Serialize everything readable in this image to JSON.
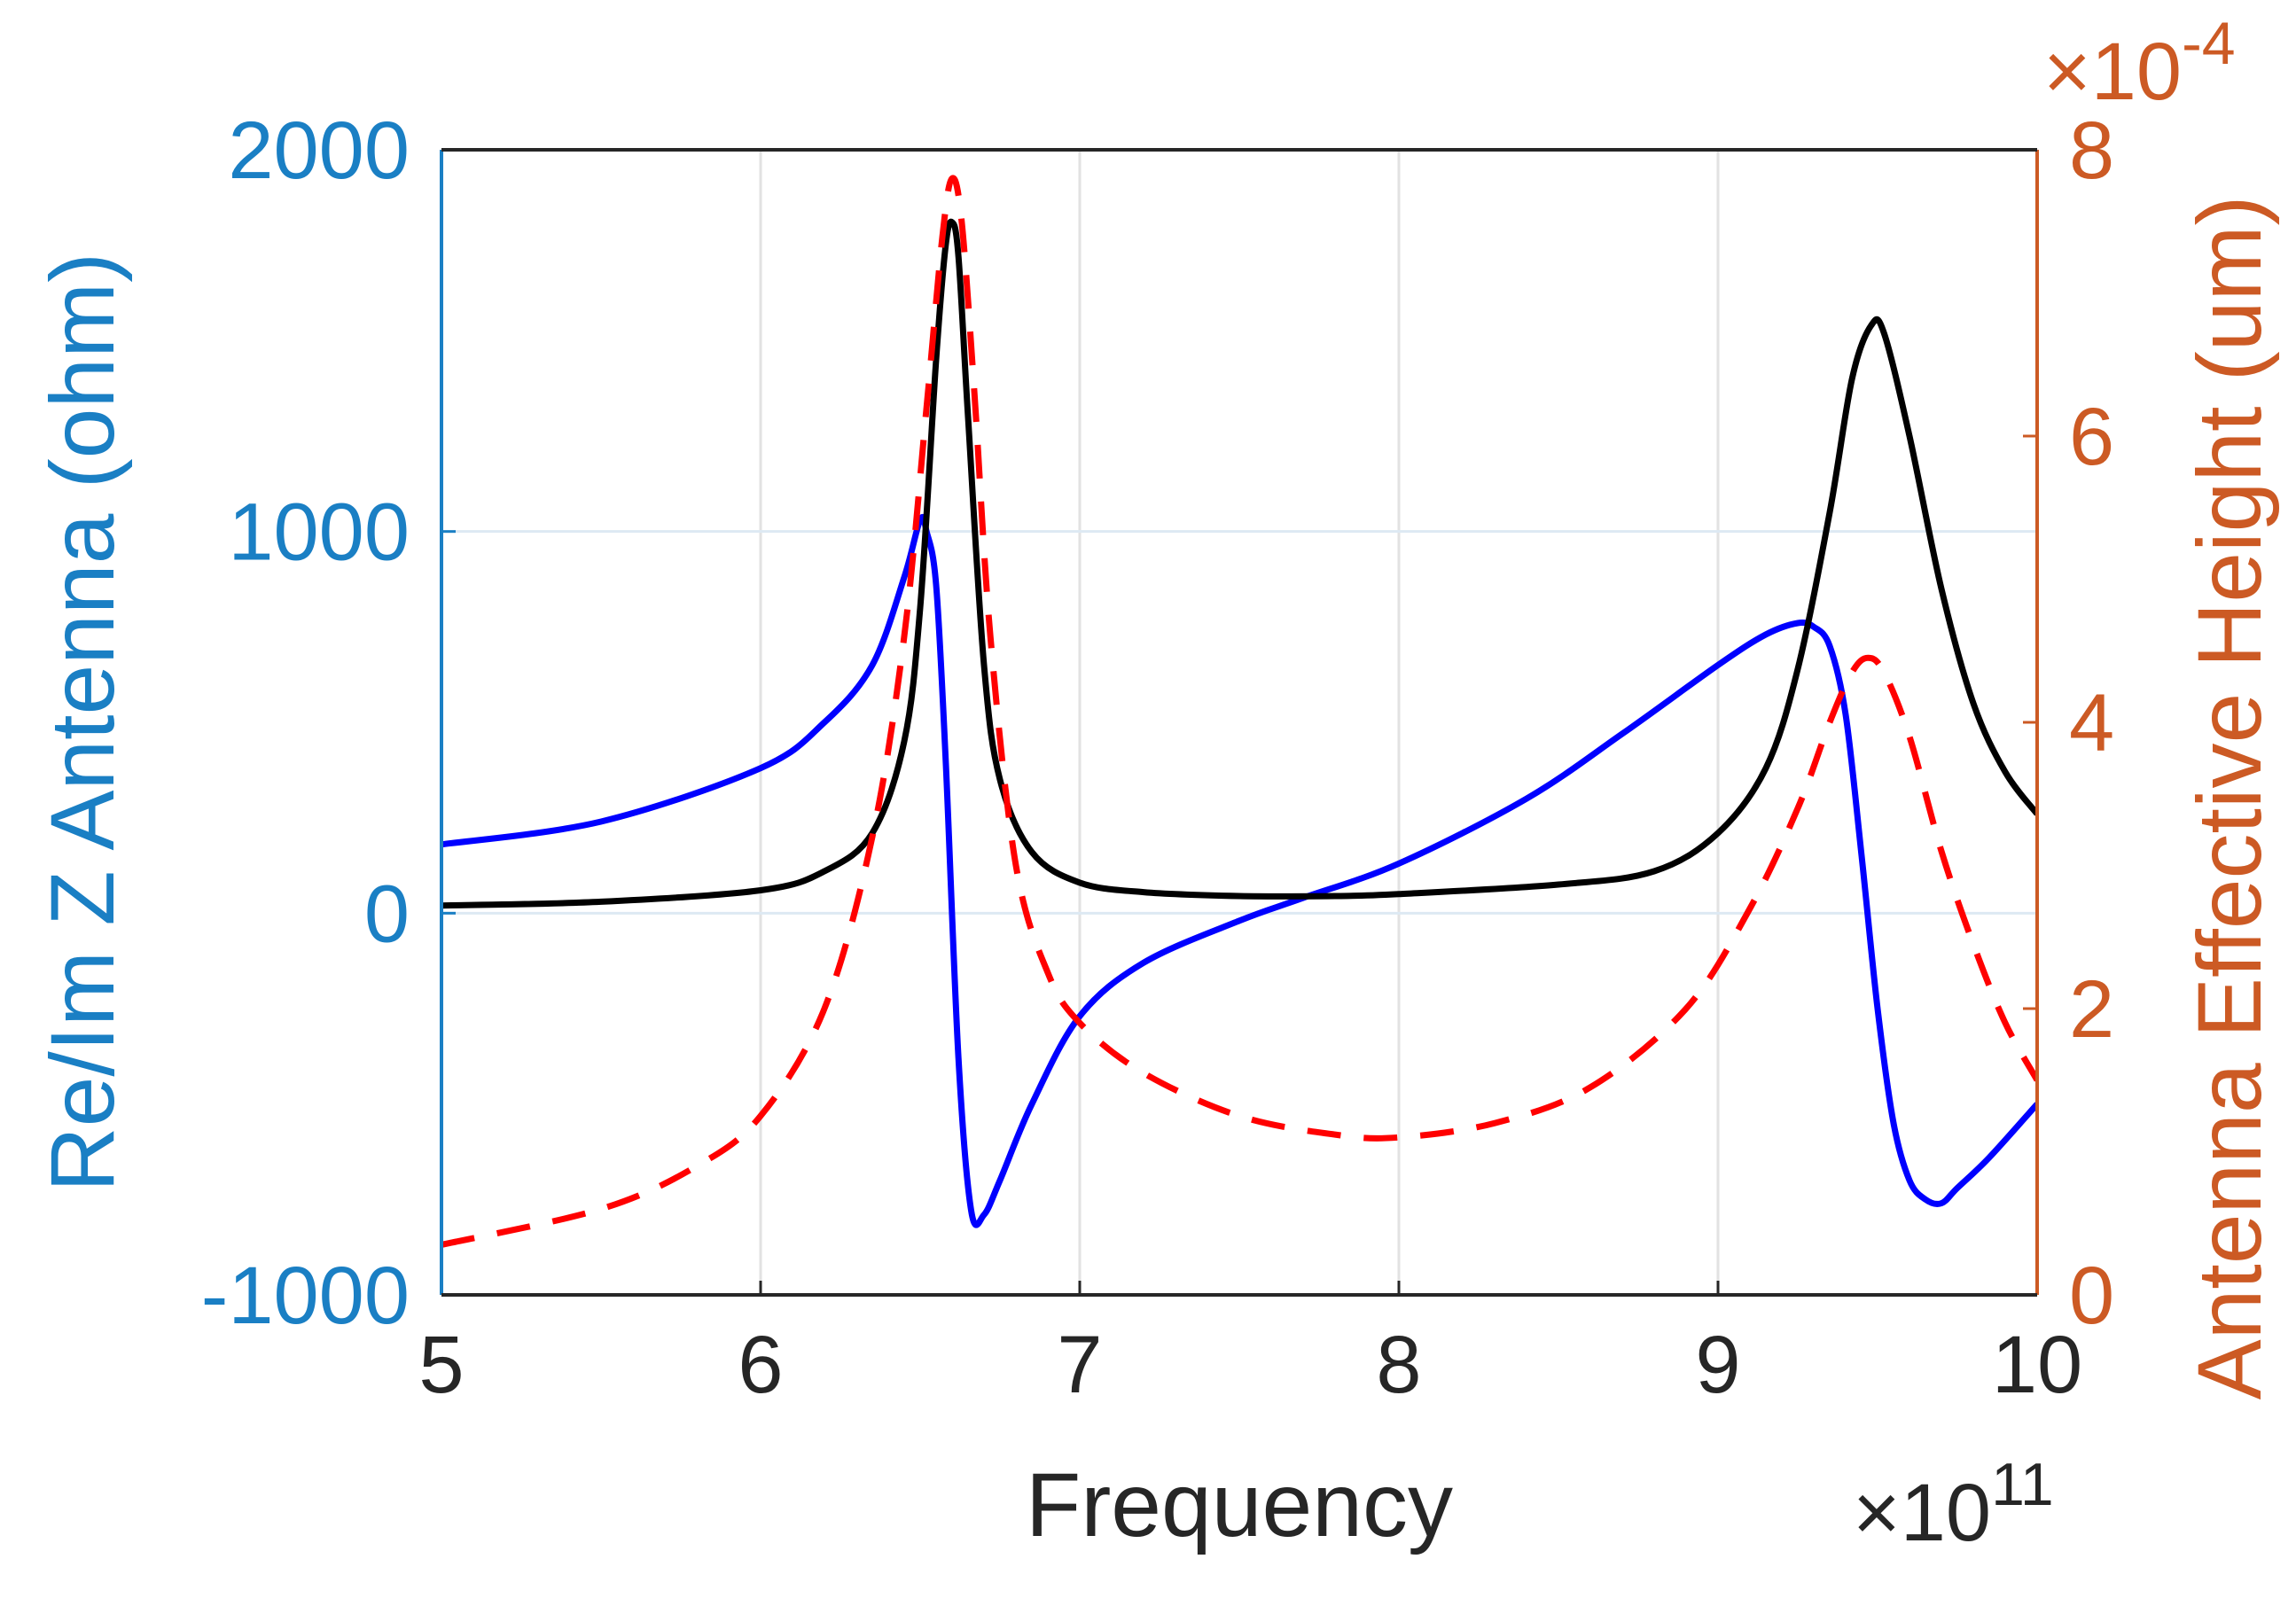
{
  "chart_data": {
    "type": "line",
    "xlabel": "Frequency",
    "x_exponent": "×10",
    "x_exponent_power": "11",
    "xlim": [
      5,
      10
    ],
    "x_ticks": [
      "5",
      "6",
      "7",
      "8",
      "9",
      "10"
    ],
    "left_axis": {
      "label": "Re/Im Z Antenna (ohm)",
      "ylim": [
        -1000,
        2000
      ],
      "ticks": [
        "-1000",
        "0",
        "1000",
        "2000"
      ],
      "color": "#1a7fc4"
    },
    "right_axis": {
      "label": "Antenna Effective Height (um)",
      "exponent": "×10",
      "exponent_power": "-4",
      "ylim": [
        0,
        8
      ],
      "ticks": [
        "0",
        "2",
        "4",
        "6",
        "8"
      ],
      "color": "#cc5a24"
    },
    "grid": true,
    "series": [
      {
        "axis": "left",
        "color": "#0000ff",
        "style": "solid",
        "x": [
          5.0,
          5.5,
          6.0,
          6.2,
          6.35,
          6.45,
          6.5,
          6.52,
          6.55,
          6.58,
          6.62,
          6.66,
          6.7,
          6.75,
          6.85,
          7.0,
          7.2,
          7.5,
          7.7,
          8.0,
          8.4,
          8.7,
          9.0,
          9.15,
          9.25,
          9.3,
          9.35,
          9.4,
          9.45,
          9.5,
          9.55,
          9.6,
          9.65,
          9.7,
          9.75,
          9.85,
          10.0
        ],
        "y": [
          180,
          240,
          380,
          500,
          650,
          880,
          1030,
          1000,
          860,
          400,
          -380,
          -780,
          -790,
          -700,
          -500,
          -270,
          -130,
          -20,
          40,
          130,
          300,
          470,
          650,
          730,
          760,
          750,
          700,
          520,
          150,
          -250,
          -550,
          -700,
          -750,
          -760,
          -720,
          -640,
          -500
        ]
      },
      {
        "axis": "left",
        "color": "#000000",
        "style": "solid",
        "x": [
          5.0,
          5.5,
          6.0,
          6.2,
          6.35,
          6.45,
          6.5,
          6.55,
          6.58,
          6.6,
          6.62,
          6.65,
          6.7,
          6.75,
          6.85,
          7.0,
          7.2,
          7.5,
          7.8,
          8.0,
          8.5,
          8.8,
          9.0,
          9.15,
          9.25,
          9.35,
          9.42,
          9.48,
          9.52,
          9.6,
          9.7,
          9.8,
          9.9,
          10.0
        ],
        "y": [
          20,
          30,
          60,
          110,
          210,
          450,
          800,
          1450,
          1750,
          1810,
          1720,
          1300,
          650,
          350,
          160,
          80,
          55,
          45,
          45,
          50,
          75,
          110,
          210,
          380,
          640,
          1050,
          1400,
          1540,
          1520,
          1250,
          850,
          550,
          370,
          260
        ]
      },
      {
        "axis": "right",
        "color": "#ff0000",
        "style": "dashed",
        "x": [
          5.0,
          5.5,
          5.8,
          6.0,
          6.2,
          6.35,
          6.45,
          6.52,
          6.57,
          6.6,
          6.63,
          6.67,
          6.72,
          6.8,
          6.9,
          7.0,
          7.2,
          7.5,
          7.8,
          8.0,
          8.3,
          8.6,
          8.9,
          9.1,
          9.25,
          9.35,
          9.42,
          9.47,
          9.52,
          9.6,
          9.7,
          9.8,
          9.9,
          10.0
        ],
        "y": [
          0.35,
          0.6,
          0.9,
          1.25,
          2.0,
          3.2,
          4.6,
          6.2,
          7.4,
          7.8,
          7.5,
          6.3,
          4.6,
          3.0,
          2.25,
          1.9,
          1.55,
          1.25,
          1.12,
          1.1,
          1.2,
          1.45,
          2.0,
          2.7,
          3.4,
          4.0,
          4.35,
          4.45,
          4.35,
          3.9,
          3.1,
          2.45,
          1.9,
          1.5
        ]
      }
    ]
  }
}
